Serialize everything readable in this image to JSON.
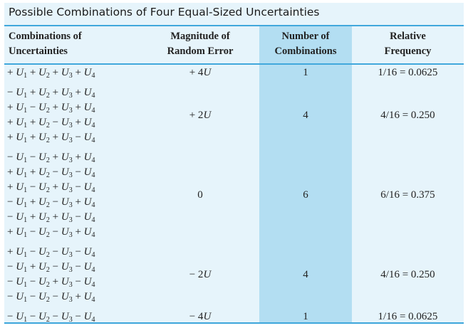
{
  "title": "Possible Combinations of Four Equal-Sized Uncertainties",
  "headers": {
    "combinations": [
      "Combinations of",
      "Uncertainties"
    ],
    "magnitude": [
      "Magnitude of",
      "Random Error"
    ],
    "number": [
      "Number of",
      "Combinations"
    ],
    "frequency": [
      "Relative",
      "Frequency"
    ]
  },
  "symbol": "U",
  "groups": [
    {
      "magnitude_sign": "+ ",
      "magnitude_value": "4",
      "magnitude_unit": "U",
      "count": "1",
      "frequency": "1/16 = 0.0625",
      "rows": [
        [
          "+",
          "+",
          "+",
          "+"
        ]
      ]
    },
    {
      "magnitude_sign": "+ ",
      "magnitude_value": "2",
      "magnitude_unit": "U",
      "count": "4",
      "frequency": "4/16 = 0.250",
      "rows": [
        [
          "−",
          "+",
          "+",
          "+"
        ],
        [
          "+",
          "−",
          "+",
          "+"
        ],
        [
          "+",
          "+",
          "−",
          "+"
        ],
        [
          "+",
          "+",
          "+",
          "−"
        ]
      ]
    },
    {
      "magnitude_sign": "",
      "magnitude_value": "0",
      "magnitude_unit": "",
      "count": "6",
      "frequency": "6/16 = 0.375",
      "rows": [
        [
          "−",
          "−",
          "+",
          "+"
        ],
        [
          "+",
          "+",
          "−",
          "−"
        ],
        [
          "+",
          "−",
          "+",
          "−"
        ],
        [
          "−",
          "+",
          "−",
          "+"
        ],
        [
          "−",
          "+",
          "+",
          "−"
        ],
        [
          "+",
          "−",
          "−",
          "+"
        ]
      ]
    },
    {
      "magnitude_sign": "− ",
      "magnitude_value": "2",
      "magnitude_unit": "U",
      "count": "4",
      "frequency": "4/16 = 0.250",
      "rows": [
        [
          "+",
          "−",
          "−",
          "−"
        ],
        [
          "−",
          "+",
          "−",
          "−"
        ],
        [
          "−",
          "−",
          "+",
          "−"
        ],
        [
          "−",
          "−",
          "−",
          "+"
        ]
      ]
    },
    {
      "magnitude_sign": "− ",
      "magnitude_value": "4",
      "magnitude_unit": "U",
      "count": "1",
      "frequency": "1/16 = 0.0625",
      "rows": [
        [
          "−",
          "−",
          "−",
          "−"
        ]
      ]
    }
  ]
}
